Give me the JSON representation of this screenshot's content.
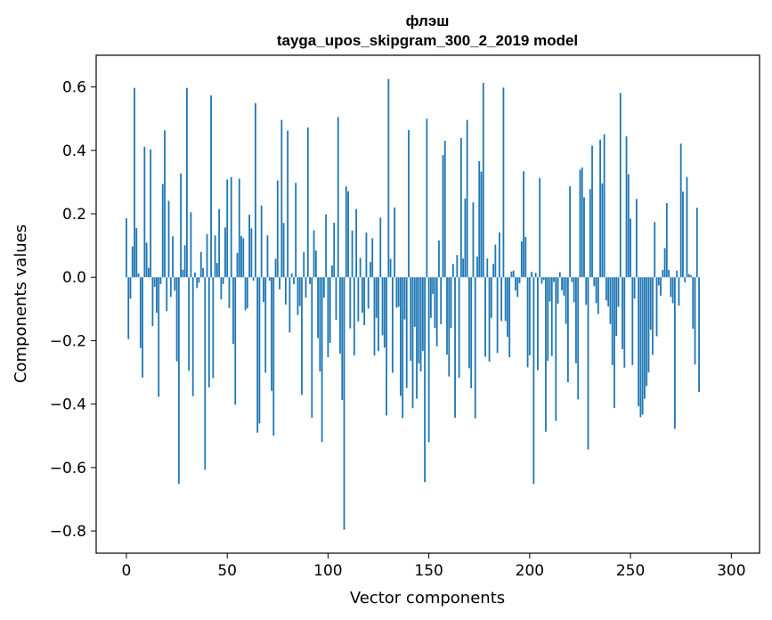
{
  "chart_data": {
    "type": "bar",
    "title_line1": "флэш",
    "title_line2": "tayga_upos_skipgram_300_2_2019 model",
    "xlabel": "Vector components",
    "ylabel": "Components values",
    "xlim": [
      -15,
      314
    ],
    "ylim": [
      -0.87,
      0.7
    ],
    "xticks": [
      0,
      50,
      100,
      150,
      200,
      250,
      300
    ],
    "xtick_labels": [
      "0",
      "50",
      "100",
      "150",
      "200",
      "250",
      "300"
    ],
    "yticks": [
      0.6,
      0.4,
      0.2,
      0.0,
      -0.2,
      -0.4,
      -0.6,
      -0.8
    ],
    "ytick_labels": [
      "0.6",
      "0.4",
      "0.2",
      "0.0",
      "−0.2",
      "−0.4",
      "−0.6",
      "−0.8"
    ],
    "bar_color": "#1f77b4",
    "values": [
      0.186,
      -0.195,
      -0.067,
      0.097,
      0.597,
      0.155,
      0.012,
      -0.223,
      -0.316,
      0.411,
      0.109,
      0.03,
      0.403,
      -0.154,
      -0.03,
      -0.112,
      -0.377,
      -0.021,
      0.294,
      0.463,
      -0.107,
      0.241,
      -0.062,
      0.129,
      -0.042,
      -0.265,
      -0.651,
      0.327,
      0.024,
      0.101,
      0.597,
      -0.295,
      0.205,
      -0.375,
      0.015,
      -0.034,
      -0.017,
      0.08,
      0.029,
      -0.607,
      0.136,
      -0.347,
      0.573,
      -0.318,
      0.132,
      0.045,
      0.215,
      -0.07,
      -0.021,
      0.157,
      0.308,
      -0.097,
      0.316,
      -0.21,
      -0.402,
      0.077,
      0.311,
      0.13,
      0.123,
      -0.104,
      -0.098,
      0.197,
      0.154,
      -0.011,
      0.549,
      -0.49,
      -0.461,
      0.226,
      -0.078,
      -0.301,
      0.132,
      -0.011,
      -0.358,
      -0.499,
      0.058,
      0.305,
      -0.038,
      0.496,
      0.171,
      -0.086,
      0.462,
      -0.174,
      0.012,
      -0.022,
      0.298,
      -0.119,
      -0.091,
      -0.371,
      0.079,
      -0.064,
      0.472,
      -0.021,
      -0.443,
      0.148,
      0.084,
      -0.192,
      -0.297,
      -0.519,
      -0.064,
      0.198,
      -0.252,
      -0.207,
      0.037,
      0.172,
      -0.135,
      0.505,
      -0.241,
      -0.387,
      -0.796,
      0.286,
      0.271,
      -0.161,
      0.147,
      -0.246,
      0.215,
      -0.139,
      0.061,
      -0.112,
      -0.151,
      0.141,
      -0.099,
      0.048,
      0.123,
      -0.247,
      -0.128,
      -0.233,
      0.188,
      -0.183,
      -0.222,
      -0.436,
      0.625,
      0.058,
      -0.301,
      0.22,
      -0.096,
      -0.093,
      -0.374,
      -0.444,
      -0.133,
      -0.349,
      0.464,
      -0.263,
      -0.413,
      -0.156,
      -0.383,
      -0.272,
      -0.297,
      -0.232,
      -0.646,
      0.5,
      -0.52,
      -0.128,
      -0.053,
      -0.16,
      -0.218,
      0.116,
      -0.148,
      0.385,
      0.43,
      -0.244,
      -0.313,
      -0.16,
      0.042,
      -0.443,
      0.07,
      -0.317,
      0.439,
      0.059,
      0.248,
      0.496,
      -0.287,
      -0.35,
      0.236,
      -0.445,
      0.065,
      0.366,
      0.333,
      0.613,
      -0.251,
      0.059,
      -0.266,
      -0.128,
      0.042,
      0.103,
      -0.239,
      0.141,
      -0.138,
      0.598,
      -0.138,
      -0.188,
      -0.252,
      0.018,
      0.021,
      -0.042,
      -0.062,
      -0.019,
      0.113,
      0.334,
      0.127,
      -0.284,
      -0.246,
      0.017,
      -0.651,
      0.014,
      -0.293,
      0.313,
      -0.02,
      -0.009,
      -0.487,
      -0.263,
      -0.076,
      -0.248,
      -0.015,
      -0.453,
      -0.083,
      0.016,
      -0.041,
      -0.058,
      -0.147,
      -0.331,
      0.287,
      -0.015,
      -0.079,
      -0.271,
      -0.385,
      0.339,
      0.346,
      0.252,
      -0.087,
      -0.543,
      0.278,
      0.415,
      -0.028,
      -0.082,
      -0.116,
      0.434,
      0.296,
      0.451,
      -0.073,
      -0.092,
      -0.147,
      -0.277,
      -0.412,
      -0.185,
      -0.093,
      0.581,
      -0.227,
      -0.285,
      0.444,
      0.325,
      0.185,
      -0.277,
      -0.067,
      0.247,
      -0.407,
      -0.441,
      -0.433,
      -0.383,
      -0.343,
      -0.3,
      -0.166,
      -0.245,
      0.174,
      -0.186,
      -0.026,
      -0.058,
      0.023,
      0.092,
      0.234,
      0.023,
      -0.062,
      -0.082,
      -0.478,
      0.021,
      -0.09,
      0.421,
      0.27,
      -0.016,
      0.316,
      0.01,
      0.006,
      -0.162,
      -0.275,
      0.219,
      -0.362
    ]
  }
}
